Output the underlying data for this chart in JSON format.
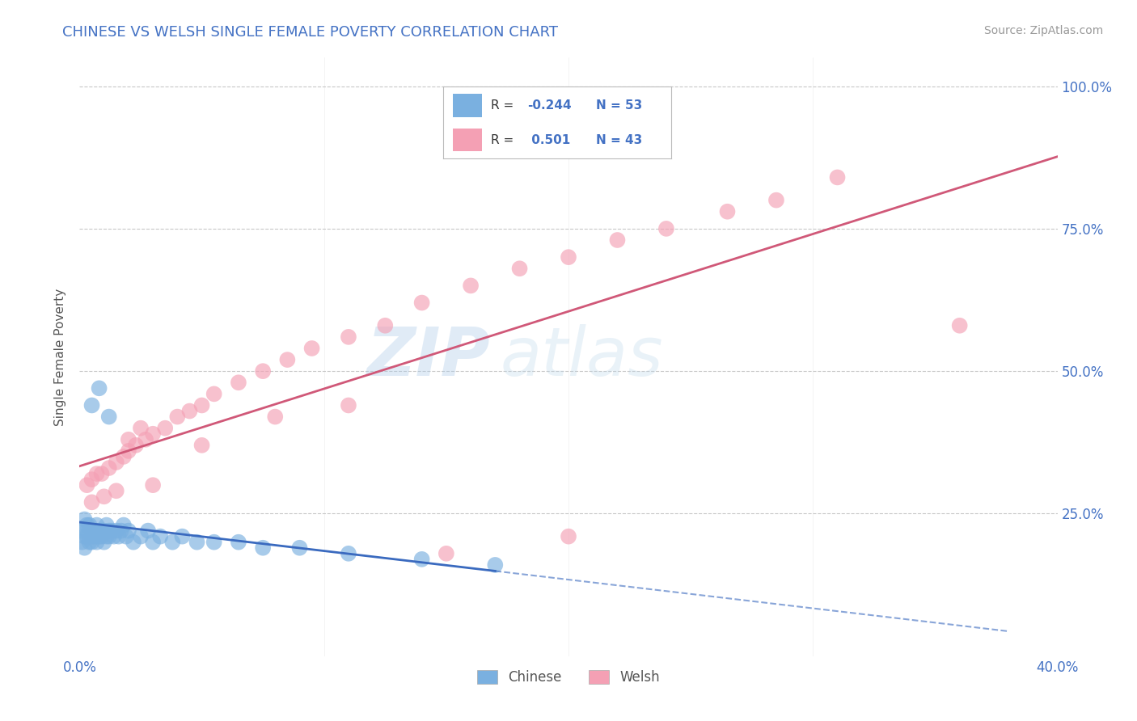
{
  "title": "CHINESE VS WELSH SINGLE FEMALE POVERTY CORRELATION CHART",
  "source": "Source: ZipAtlas.com",
  "ylabel": "Single Female Poverty",
  "xlim": [
    0.0,
    0.4
  ],
  "ylim": [
    0.0,
    1.05
  ],
  "chinese_color": "#7ab0e0",
  "welsh_color": "#f4a0b4",
  "chinese_line_color": "#3a6abf",
  "welsh_line_color": "#d05878",
  "r_chinese": -0.244,
  "n_chinese": 53,
  "r_welsh": 0.501,
  "n_welsh": 43,
  "background_color": "#ffffff",
  "grid_color": "#c8c8c8",
  "title_color": "#4472c4",
  "watermark_zip": "ZIP",
  "watermark_atlas": "atlas",
  "chinese_x": [
    0.001,
    0.001,
    0.002,
    0.002,
    0.002,
    0.003,
    0.003,
    0.003,
    0.004,
    0.004,
    0.005,
    0.005,
    0.005,
    0.006,
    0.006,
    0.007,
    0.007,
    0.008,
    0.008,
    0.009,
    0.009,
    0.01,
    0.01,
    0.011,
    0.011,
    0.012,
    0.012,
    0.013,
    0.014,
    0.015,
    0.016,
    0.017,
    0.018,
    0.019,
    0.02,
    0.022,
    0.025,
    0.028,
    0.03,
    0.033,
    0.038,
    0.042,
    0.048,
    0.055,
    0.065,
    0.075,
    0.09,
    0.11,
    0.14,
    0.17,
    0.005,
    0.008,
    0.012
  ],
  "chinese_y": [
    0.2,
    0.22,
    0.21,
    0.24,
    0.19,
    0.23,
    0.22,
    0.21,
    0.23,
    0.2,
    0.22,
    0.21,
    0.2,
    0.22,
    0.21,
    0.23,
    0.2,
    0.22,
    0.21,
    0.22,
    0.21,
    0.22,
    0.2,
    0.21,
    0.23,
    0.22,
    0.21,
    0.22,
    0.21,
    0.22,
    0.21,
    0.22,
    0.23,
    0.21,
    0.22,
    0.2,
    0.21,
    0.22,
    0.2,
    0.21,
    0.2,
    0.21,
    0.2,
    0.2,
    0.2,
    0.19,
    0.19,
    0.18,
    0.17,
    0.16,
    0.44,
    0.47,
    0.42
  ],
  "welsh_x": [
    0.003,
    0.005,
    0.007,
    0.009,
    0.012,
    0.015,
    0.018,
    0.02,
    0.023,
    0.027,
    0.03,
    0.035,
    0.04,
    0.045,
    0.05,
    0.055,
    0.065,
    0.075,
    0.085,
    0.095,
    0.11,
    0.125,
    0.14,
    0.16,
    0.18,
    0.2,
    0.22,
    0.24,
    0.265,
    0.285,
    0.005,
    0.01,
    0.015,
    0.02,
    0.025,
    0.03,
    0.05,
    0.08,
    0.11,
    0.15,
    0.2,
    0.36,
    0.31
  ],
  "welsh_y": [
    0.3,
    0.31,
    0.32,
    0.32,
    0.33,
    0.34,
    0.35,
    0.36,
    0.37,
    0.38,
    0.39,
    0.4,
    0.42,
    0.43,
    0.44,
    0.46,
    0.48,
    0.5,
    0.52,
    0.54,
    0.56,
    0.58,
    0.62,
    0.65,
    0.68,
    0.7,
    0.73,
    0.75,
    0.78,
    0.8,
    0.27,
    0.28,
    0.29,
    0.38,
    0.4,
    0.3,
    0.37,
    0.42,
    0.44,
    0.18,
    0.21,
    0.58,
    0.84
  ],
  "cn_line_solid_end": 0.17,
  "wl_line_start": 0.0,
  "wl_line_end": 0.4
}
